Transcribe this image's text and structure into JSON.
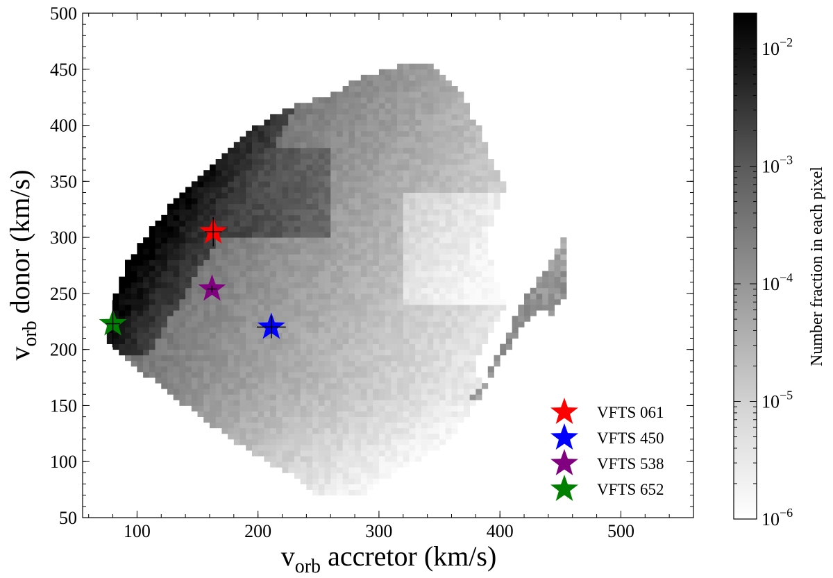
{
  "chart_data": {
    "type": "heatmap",
    "xlabel": {
      "main": "v",
      "sub": "orb",
      "rest": " accretor (km/s)"
    },
    "ylabel": {
      "main": "v",
      "sub": "orb",
      "rest": " donor (km/s)"
    },
    "xlim": [
      55,
      560
    ],
    "ylim": [
      50,
      500
    ],
    "xticks": [
      100,
      200,
      300,
      400,
      500
    ],
    "yticks": [
      50,
      100,
      150,
      200,
      250,
      300,
      350,
      400,
      450,
      500
    ],
    "x_minor_step": 20,
    "y_minor_step": 10,
    "grid": false,
    "colorbar": {
      "label": "Number fraction in each pixel",
      "scale": "log",
      "range": [
        1e-06,
        0.02
      ],
      "tick_labels": [
        {
          "base": "10",
          "exp": "−2",
          "value": 0.01
        },
        {
          "base": "10",
          "exp": "−3",
          "value": 0.001
        },
        {
          "base": "10",
          "exp": "−4",
          "value": 0.0001
        },
        {
          "base": "10",
          "exp": "−5",
          "value": 1e-05
        },
        {
          "base": "10",
          "exp": "−6",
          "value": 1e-06
        }
      ]
    },
    "stars": [
      {
        "name": "VFTS 061",
        "x": 163,
        "y": 305,
        "xerr": 7,
        "yerr": 13,
        "color": "#ff0000"
      },
      {
        "name": "VFTS 450",
        "x": 211,
        "y": 220,
        "xerr": 12,
        "yerr": 10,
        "color": "#0000ff"
      },
      {
        "name": "VFTS 538",
        "x": 162,
        "y": 254,
        "xerr": 4,
        "yerr": 3,
        "color": "#800080"
      },
      {
        "name": "VFTS 652",
        "x": 80,
        "y": 223,
        "xerr": 6,
        "yerr": 21,
        "color": "#008000"
      }
    ],
    "legend_position": "lower-right"
  }
}
